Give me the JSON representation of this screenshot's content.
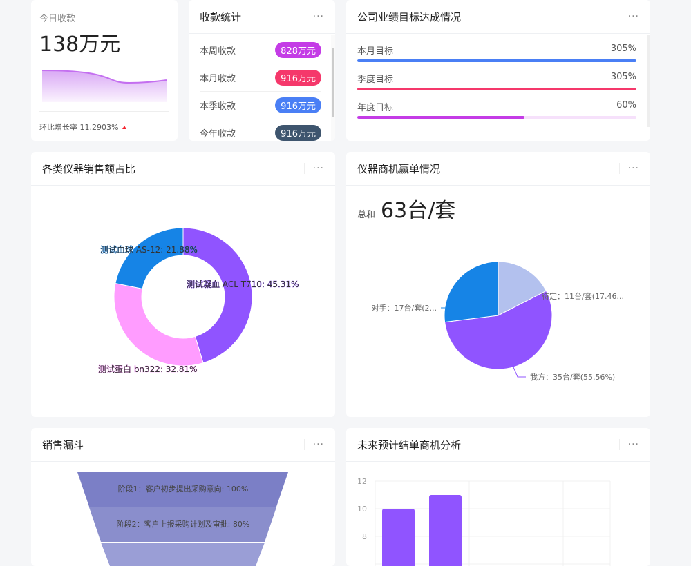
{
  "today": {
    "label": "今日收款",
    "value": "138万元",
    "growth_label": "环比增长率 11.2903%",
    "trend_icon": "triangle-up-icon",
    "trend_color": "#f5222d"
  },
  "collection": {
    "title": "收款统计",
    "items": [
      {
        "label": "本周收款",
        "value": "828万元",
        "color": "#c43ce6"
      },
      {
        "label": "本月收款",
        "value": "916万元",
        "color": "#f5386b"
      },
      {
        "label": "本季收款",
        "value": "916万元",
        "color": "#4a7ff5"
      },
      {
        "label": "今年收款",
        "value": "916万元",
        "color": "#3e556e"
      }
    ]
  },
  "goals": {
    "title": "公司业绩目标达成情况",
    "items": [
      {
        "label": "本月目标",
        "value": "305%",
        "percent": 100,
        "color": "#4a7ff5",
        "track": "#e6edfd"
      },
      {
        "label": "季度目标",
        "value": "305%",
        "percent": 100,
        "color": "#f5386b",
        "track": "#fde3ea"
      },
      {
        "label": "年度目标",
        "value": "60%",
        "percent": 60,
        "color": "#c43ce6",
        "track": "#f6e1fb"
      }
    ]
  },
  "instrument_share": {
    "title": "各类仪器销售额占比"
  },
  "opportunity": {
    "title": "仪器商机赢单情况",
    "total_label": "总和",
    "total_value": "63台/套"
  },
  "funnel": {
    "title": "销售漏斗",
    "stages": [
      "阶段1：客户初步提出采购意向: 100%",
      "阶段2：客户上报采购计划及审批: 80%"
    ]
  },
  "forecast": {
    "title": "未来预计结单商机分析"
  },
  "chart_data": [
    {
      "type": "pie",
      "variant": "donut",
      "slices": [
        {
          "name": "测试凝血 ACL T710",
          "percent": 45.31,
          "label": "测试凝血 ACL T710: 45.31%",
          "color": "#9054ff"
        },
        {
          "name": "测试蛋白 bn322",
          "percent": 32.81,
          "label": "测试蛋白 bn322: 32.81%",
          "color": "#ff9cff"
        },
        {
          "name": "测试血球 AS-12",
          "percent": 21.88,
          "label": "测试血球 AS-12: 21.88%",
          "color": "#1684e6"
        }
      ]
    },
    {
      "type": "pie",
      "slices": [
        {
          "name": "待定",
          "value": 11,
          "percent": 17.46,
          "label": "待定：11台/套(17.46...",
          "color": "#b3c1ee"
        },
        {
          "name": "我方",
          "value": 35,
          "percent": 55.56,
          "label": "我方：35台/套(55.56%)",
          "color": "#9054ff"
        },
        {
          "name": "对手",
          "value": 17,
          "percent": 26.98,
          "label": "对手：17台/套(2...",
          "color": "#1684e6"
        }
      ]
    },
    {
      "type": "bar",
      "values": [
        10,
        11
      ],
      "yticks": [
        "12",
        "10",
        "8"
      ],
      "ylim_visible": [
        8,
        12
      ],
      "color": "#9054ff"
    }
  ]
}
